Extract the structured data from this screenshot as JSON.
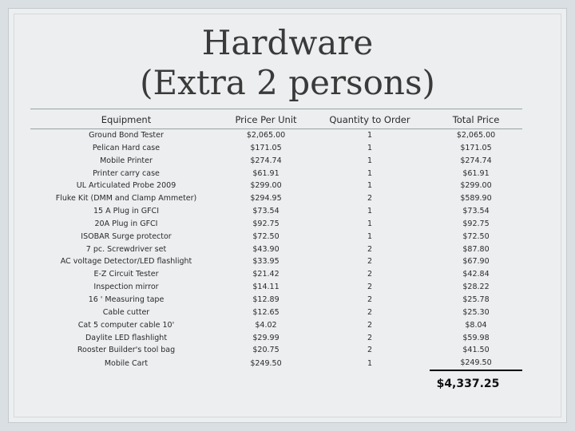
{
  "title_line1": "Hardware",
  "title_line2": "(Extra 2 persons)",
  "columns": [
    "Equipment",
    "Price Per Unit",
    "Quantity to Order",
    "Total Price"
  ],
  "rows": [
    [
      "Ground Bond Tester",
      "$2,065.00",
      "1",
      "$2,065.00"
    ],
    [
      "Pelican Hard case",
      "$171.05",
      "1",
      "$171.05"
    ],
    [
      "Mobile Printer",
      "$274.74",
      "1",
      "$274.74"
    ],
    [
      "Printer carry case",
      "$61.91",
      "1",
      "$61.91"
    ],
    [
      "UL Articulated Probe 2009",
      "$299.00",
      "1",
      "$299.00"
    ],
    [
      "Fluke Kit (DMM and Clamp Ammeter)",
      "$294.95",
      "2",
      "$589.90"
    ],
    [
      "15 A Plug in GFCI",
      "$73.54",
      "1",
      "$73.54"
    ],
    [
      "20A Plug in GFCI",
      "$92.75",
      "1",
      "$92.75"
    ],
    [
      "ISOBAR Surge protector",
      "$72.50",
      "1",
      "$72.50"
    ],
    [
      "7 pc. Screwdriver set",
      "$43.90",
      "2",
      "$87.80"
    ],
    [
      "AC voltage Detector/LED flashlight",
      "$33.95",
      "2",
      "$67.90"
    ],
    [
      "E-Z Circuit Tester",
      "$21.42",
      "2",
      "$42.84"
    ],
    [
      "Inspection mirror",
      "$14.11",
      "2",
      "$28.22"
    ],
    [
      "16 ' Measuring tape",
      "$12.89",
      "2",
      "$25.78"
    ],
    [
      "Cable cutter",
      "$12.65",
      "2",
      "$25.30"
    ],
    [
      "Cat 5 computer cable 10'",
      "$4.02",
      "2",
      "$8.04"
    ],
    [
      "Daylite LED flashlight",
      "$29.99",
      "2",
      "$59.98"
    ],
    [
      "Rooster Builder's tool bag",
      "$20.75",
      "2",
      "$41.50"
    ],
    [
      "Mobile Cart",
      "$249.50",
      "1",
      "$249.50"
    ]
  ],
  "grand_total": "$4,337.25"
}
